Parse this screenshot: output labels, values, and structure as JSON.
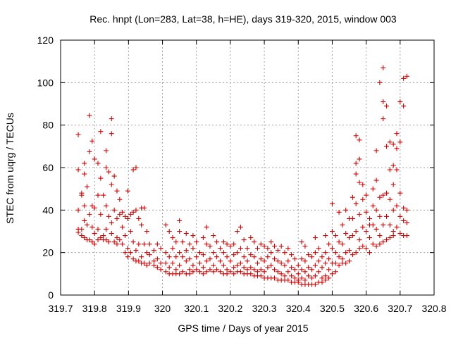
{
  "chart_data": {
    "type": "scatter",
    "title": "Rec. hnpt (Lon=283, Lat=38, h=HE), days 319-320, 2015, window 003",
    "xlabel": "GPS time / Days of year 2015",
    "ylabel": "STEC from uqrg / TECUs",
    "xlim": [
      319.7,
      320.8
    ],
    "ylim": [
      0,
      120
    ],
    "xticks": [
      "319.7",
      "319.8",
      "319.9",
      "320",
      "320.1",
      "320.2",
      "320.3",
      "320.4",
      "320.5",
      "320.6",
      "320.7",
      "320.8"
    ],
    "yticks": [
      "0",
      "20",
      "40",
      "60",
      "80",
      "100",
      "120"
    ],
    "grid": true,
    "marker": "plus",
    "color": "#d00000",
    "points": [
      [
        319.752,
        75.5
      ],
      [
        319.752,
        59
      ],
      [
        319.752,
        40
      ],
      [
        319.752,
        31
      ],
      [
        319.752,
        29.5
      ],
      [
        319.762,
        48
      ],
      [
        319.762,
        47
      ],
      [
        319.762,
        31
      ],
      [
        319.762,
        28
      ],
      [
        319.77,
        62
      ],
      [
        319.77,
        57
      ],
      [
        319.77,
        42
      ],
      [
        319.77,
        35
      ],
      [
        319.77,
        27
      ],
      [
        319.778,
        51
      ],
      [
        319.778,
        33
      ],
      [
        319.778,
        26
      ],
      [
        319.785,
        84.5
      ],
      [
        319.785,
        67.5
      ],
      [
        319.785,
        38
      ],
      [
        319.785,
        26
      ],
      [
        319.793,
        72.5
      ],
      [
        319.793,
        42
      ],
      [
        319.793,
        32
      ],
      [
        319.793,
        25
      ],
      [
        319.8,
        64
      ],
      [
        319.8,
        41
      ],
      [
        319.8,
        29
      ],
      [
        319.8,
        24
      ],
      [
        319.81,
        62
      ],
      [
        319.81,
        47
      ],
      [
        319.81,
        31
      ],
      [
        319.81,
        26
      ],
      [
        319.818,
        77
      ],
      [
        319.818,
        55
      ],
      [
        319.818,
        38
      ],
      [
        319.818,
        27
      ],
      [
        319.826,
        47
      ],
      [
        319.826,
        28
      ],
      [
        319.826,
        26
      ],
      [
        319.834,
        68
      ],
      [
        319.834,
        60
      ],
      [
        319.834,
        42
      ],
      [
        319.834,
        31
      ],
      [
        319.834,
        26
      ],
      [
        319.842,
        58
      ],
      [
        319.842,
        37
      ],
      [
        319.842,
        25
      ],
      [
        319.85,
        83
      ],
      [
        319.85,
        76
      ],
      [
        319.85,
        52
      ],
      [
        319.85,
        34
      ],
      [
        319.85,
        29
      ],
      [
        319.858,
        56
      ],
      [
        319.858,
        40
      ],
      [
        319.858,
        25
      ],
      [
        319.866,
        49
      ],
      [
        319.866,
        36
      ],
      [
        319.866,
        27
      ],
      [
        319.866,
        24
      ],
      [
        319.874,
        45
      ],
      [
        319.874,
        38
      ],
      [
        319.874,
        26
      ],
      [
        319.882,
        39
      ],
      [
        319.882,
        32
      ],
      [
        319.882,
        24
      ],
      [
        319.89,
        37
      ],
      [
        319.89,
        28
      ],
      [
        319.89,
        20
      ],
      [
        319.898,
        49
      ],
      [
        319.898,
        36
      ],
      [
        319.898,
        22
      ],
      [
        319.898,
        18
      ],
      [
        319.906,
        38
      ],
      [
        319.906,
        30
      ],
      [
        319.906,
        20
      ],
      [
        319.914,
        59
      ],
      [
        319.914,
        39
      ],
      [
        319.914,
        25
      ],
      [
        319.914,
        17
      ],
      [
        319.922,
        60
      ],
      [
        319.922,
        40
      ],
      [
        319.922,
        21
      ],
      [
        319.922,
        16
      ],
      [
        319.93,
        36
      ],
      [
        319.93,
        24
      ],
      [
        319.93,
        16
      ],
      [
        319.938,
        41
      ],
      [
        319.938,
        33
      ],
      [
        319.938,
        18
      ],
      [
        319.938,
        15
      ],
      [
        319.946,
        41
      ],
      [
        319.946,
        24
      ],
      [
        319.946,
        15
      ],
      [
        319.954,
        30
      ],
      [
        319.954,
        20
      ],
      [
        319.954,
        14
      ],
      [
        319.962,
        24
      ],
      [
        319.962,
        19
      ],
      [
        319.962,
        15
      ],
      [
        319.975,
        21
      ],
      [
        319.975,
        16
      ],
      [
        319.975,
        14
      ],
      [
        319.985,
        24
      ],
      [
        319.985,
        17
      ],
      [
        319.985,
        13
      ],
      [
        319.995,
        22
      ],
      [
        319.995,
        15
      ],
      [
        319.995,
        12
      ],
      [
        320.01,
        33
      ],
      [
        320.01,
        20
      ],
      [
        320.01,
        15
      ],
      [
        320.01,
        11
      ],
      [
        320.02,
        30
      ],
      [
        320.02,
        18
      ],
      [
        320.02,
        13
      ],
      [
        320.02,
        10
      ],
      [
        320.03,
        27
      ],
      [
        320.03,
        22
      ],
      [
        320.03,
        15
      ],
      [
        320.03,
        10
      ],
      [
        320.04,
        25
      ],
      [
        320.04,
        18
      ],
      [
        320.04,
        12
      ],
      [
        320.04,
        10
      ],
      [
        320.05,
        35
      ],
      [
        320.05,
        30
      ],
      [
        320.05,
        20
      ],
      [
        320.05,
        14
      ],
      [
        320.05,
        10
      ],
      [
        320.06,
        25
      ],
      [
        320.06,
        18
      ],
      [
        320.06,
        11
      ],
      [
        320.07,
        29
      ],
      [
        320.07,
        21
      ],
      [
        320.07,
        16
      ],
      [
        320.07,
        10
      ],
      [
        320.08,
        24
      ],
      [
        320.08,
        17
      ],
      [
        320.08,
        12
      ],
      [
        320.08,
        10
      ],
      [
        320.09,
        28
      ],
      [
        320.09,
        22
      ],
      [
        320.09,
        14
      ],
      [
        320.09,
        11
      ],
      [
        320.1,
        25
      ],
      [
        320.1,
        18
      ],
      [
        320.1,
        12
      ],
      [
        320.11,
        20
      ],
      [
        320.11,
        15
      ],
      [
        320.11,
        11
      ],
      [
        320.12,
        27
      ],
      [
        320.12,
        19
      ],
      [
        320.12,
        13
      ],
      [
        320.12,
        10
      ],
      [
        320.13,
        32
      ],
      [
        320.13,
        24
      ],
      [
        320.13,
        16
      ],
      [
        320.13,
        11
      ],
      [
        320.14,
        23
      ],
      [
        320.14,
        17
      ],
      [
        320.14,
        12
      ],
      [
        320.15,
        28
      ],
      [
        320.15,
        20
      ],
      [
        320.15,
        14
      ],
      [
        320.15,
        11
      ],
      [
        320.16,
        25
      ],
      [
        320.16,
        18
      ],
      [
        320.16,
        12
      ],
      [
        320.17,
        22
      ],
      [
        320.17,
        16
      ],
      [
        320.17,
        11
      ],
      [
        320.18,
        25
      ],
      [
        320.18,
        20
      ],
      [
        320.18,
        14
      ],
      [
        320.18,
        10
      ],
      [
        320.19,
        24
      ],
      [
        320.19,
        18
      ],
      [
        320.19,
        12
      ],
      [
        320.19,
        10
      ],
      [
        320.2,
        23
      ],
      [
        320.2,
        16
      ],
      [
        320.2,
        11
      ],
      [
        320.21,
        24
      ],
      [
        320.21,
        19
      ],
      [
        320.21,
        13
      ],
      [
        320.21,
        10
      ],
      [
        320.22,
        30
      ],
      [
        320.22,
        20
      ],
      [
        320.22,
        14
      ],
      [
        320.22,
        11
      ],
      [
        320.23,
        32
      ],
      [
        320.23,
        22
      ],
      [
        320.23,
        15
      ],
      [
        320.23,
        11
      ],
      [
        320.24,
        26
      ],
      [
        320.24,
        18
      ],
      [
        320.24,
        13
      ],
      [
        320.24,
        10
      ],
      [
        320.25,
        22
      ],
      [
        320.25,
        16
      ],
      [
        320.25,
        12
      ],
      [
        320.25,
        10
      ],
      [
        320.26,
        27
      ],
      [
        320.26,
        19
      ],
      [
        320.26,
        13
      ],
      [
        320.26,
        10
      ],
      [
        320.27,
        25
      ],
      [
        320.27,
        18
      ],
      [
        320.27,
        12
      ],
      [
        320.27,
        9
      ],
      [
        320.28,
        22
      ],
      [
        320.28,
        15
      ],
      [
        320.28,
        11
      ],
      [
        320.28,
        9
      ],
      [
        320.29,
        24
      ],
      [
        320.29,
        17
      ],
      [
        320.29,
        12
      ],
      [
        320.29,
        9
      ],
      [
        320.3,
        23
      ],
      [
        320.3,
        16
      ],
      [
        320.3,
        11
      ],
      [
        320.3,
        8
      ],
      [
        320.31,
        22
      ],
      [
        320.31,
        18
      ],
      [
        320.31,
        13
      ],
      [
        320.31,
        8
      ],
      [
        320.32,
        25
      ],
      [
        320.32,
        20
      ],
      [
        320.32,
        14
      ],
      [
        320.32,
        8
      ],
      [
        320.33,
        23
      ],
      [
        320.33,
        17
      ],
      [
        320.33,
        12
      ],
      [
        320.33,
        8
      ],
      [
        320.34,
        21
      ],
      [
        320.34,
        16
      ],
      [
        320.34,
        11
      ],
      [
        320.34,
        7
      ],
      [
        320.35,
        23
      ],
      [
        320.35,
        15
      ],
      [
        320.35,
        10
      ],
      [
        320.35,
        7
      ],
      [
        320.36,
        20
      ],
      [
        320.36,
        14
      ],
      [
        320.36,
        9
      ],
      [
        320.36,
        7
      ],
      [
        320.37,
        22
      ],
      [
        320.37,
        16
      ],
      [
        320.37,
        11
      ],
      [
        320.37,
        7
      ],
      [
        320.38,
        19
      ],
      [
        320.38,
        13
      ],
      [
        320.38,
        9
      ],
      [
        320.38,
        6
      ],
      [
        320.39,
        17
      ],
      [
        320.39,
        12
      ],
      [
        320.39,
        8
      ],
      [
        320.39,
        6
      ],
      [
        320.4,
        14
      ],
      [
        320.4,
        10
      ],
      [
        320.4,
        7
      ],
      [
        320.4,
        6
      ],
      [
        320.41,
        25
      ],
      [
        320.41,
        17
      ],
      [
        320.41,
        12
      ],
      [
        320.41,
        8
      ],
      [
        320.41,
        5
      ],
      [
        320.42,
        23
      ],
      [
        320.42,
        16
      ],
      [
        320.42,
        11
      ],
      [
        320.42,
        7
      ],
      [
        320.42,
        5
      ],
      [
        320.43,
        19
      ],
      [
        320.43,
        13
      ],
      [
        320.43,
        9
      ],
      [
        320.43,
        5
      ],
      [
        320.44,
        18
      ],
      [
        320.44,
        12
      ],
      [
        320.44,
        8
      ],
      [
        320.44,
        5
      ],
      [
        320.45,
        27
      ],
      [
        320.45,
        20
      ],
      [
        320.45,
        14
      ],
      [
        320.45,
        9
      ],
      [
        320.45,
        5
      ],
      [
        320.46,
        22
      ],
      [
        320.46,
        16
      ],
      [
        320.46,
        11
      ],
      [
        320.46,
        6
      ],
      [
        320.47,
        18
      ],
      [
        320.47,
        13
      ],
      [
        320.47,
        8
      ],
      [
        320.47,
        6
      ],
      [
        320.48,
        28
      ],
      [
        320.48,
        20
      ],
      [
        320.48,
        15
      ],
      [
        320.48,
        9
      ],
      [
        320.48,
        7
      ],
      [
        320.49,
        24
      ],
      [
        320.49,
        17
      ],
      [
        320.49,
        12
      ],
      [
        320.49,
        8
      ],
      [
        320.5,
        43
      ],
      [
        320.5,
        30
      ],
      [
        320.5,
        22
      ],
      [
        320.5,
        15
      ],
      [
        320.5,
        10
      ],
      [
        320.51,
        28
      ],
      [
        320.51,
        20
      ],
      [
        320.51,
        15
      ],
      [
        320.51,
        11
      ],
      [
        320.52,
        39
      ],
      [
        320.52,
        25
      ],
      [
        320.52,
        18
      ],
      [
        320.52,
        14
      ],
      [
        320.53,
        33
      ],
      [
        320.53,
        24
      ],
      [
        320.53,
        17
      ],
      [
        320.53,
        15
      ],
      [
        320.54,
        40
      ],
      [
        320.54,
        29
      ],
      [
        320.54,
        20
      ],
      [
        320.54,
        15
      ],
      [
        320.55,
        36
      ],
      [
        320.55,
        27
      ],
      [
        320.55,
        21
      ],
      [
        320.55,
        16
      ],
      [
        320.56,
        46
      ],
      [
        320.56,
        36
      ],
      [
        320.56,
        28
      ],
      [
        320.56,
        19
      ],
      [
        320.57,
        75
      ],
      [
        320.57,
        62
      ],
      [
        320.57,
        57
      ],
      [
        320.57,
        43
      ],
      [
        320.57,
        30
      ],
      [
        320.57,
        20
      ],
      [
        320.58,
        73
      ],
      [
        320.58,
        64
      ],
      [
        320.58,
        53
      ],
      [
        320.58,
        38
      ],
      [
        320.58,
        26
      ],
      [
        320.58,
        22
      ],
      [
        320.59,
        52
      ],
      [
        320.59,
        45
      ],
      [
        320.59,
        32
      ],
      [
        320.59,
        23
      ],
      [
        320.6,
        47
      ],
      [
        320.6,
        39
      ],
      [
        320.6,
        30
      ],
      [
        320.6,
        22
      ],
      [
        320.61,
        36
      ],
      [
        320.61,
        33
      ],
      [
        320.61,
        27
      ],
      [
        320.61,
        20
      ],
      [
        320.62,
        50
      ],
      [
        320.62,
        42
      ],
      [
        320.62,
        33
      ],
      [
        320.62,
        24
      ],
      [
        320.63,
        68
      ],
      [
        320.63,
        54
      ],
      [
        320.63,
        40
      ],
      [
        320.63,
        31
      ],
      [
        320.63,
        23
      ],
      [
        320.64,
        100
      ],
      [
        320.64,
        46
      ],
      [
        320.64,
        37
      ],
      [
        320.64,
        28
      ],
      [
        320.64,
        24
      ],
      [
        320.65,
        107
      ],
      [
        320.65,
        91
      ],
      [
        320.65,
        83
      ],
      [
        320.65,
        47
      ],
      [
        320.65,
        33
      ],
      [
        320.65,
        25
      ],
      [
        320.66,
        89
      ],
      [
        320.66,
        70
      ],
      [
        320.66,
        48
      ],
      [
        320.66,
        37
      ],
      [
        320.66,
        26
      ],
      [
        320.67,
        72
      ],
      [
        320.67,
        59
      ],
      [
        320.67,
        45
      ],
      [
        320.67,
        33
      ],
      [
        320.67,
        27
      ],
      [
        320.68,
        71
      ],
      [
        320.68,
        61
      ],
      [
        320.68,
        52
      ],
      [
        320.68,
        40
      ],
      [
        320.68,
        30
      ],
      [
        320.68,
        28
      ],
      [
        320.69,
        76
      ],
      [
        320.69,
        69
      ],
      [
        320.69,
        59
      ],
      [
        320.69,
        42
      ],
      [
        320.69,
        32
      ],
      [
        320.7,
        91
      ],
      [
        320.7,
        72
      ],
      [
        320.7,
        48
      ],
      [
        320.7,
        37
      ],
      [
        320.7,
        29
      ],
      [
        320.71,
        102
      ],
      [
        320.71,
        89
      ],
      [
        320.71,
        41
      ],
      [
        320.71,
        35
      ],
      [
        320.71,
        28
      ],
      [
        320.72,
        103
      ],
      [
        320.72,
        40
      ],
      [
        320.72,
        34
      ],
      [
        320.72,
        28
      ]
    ]
  }
}
